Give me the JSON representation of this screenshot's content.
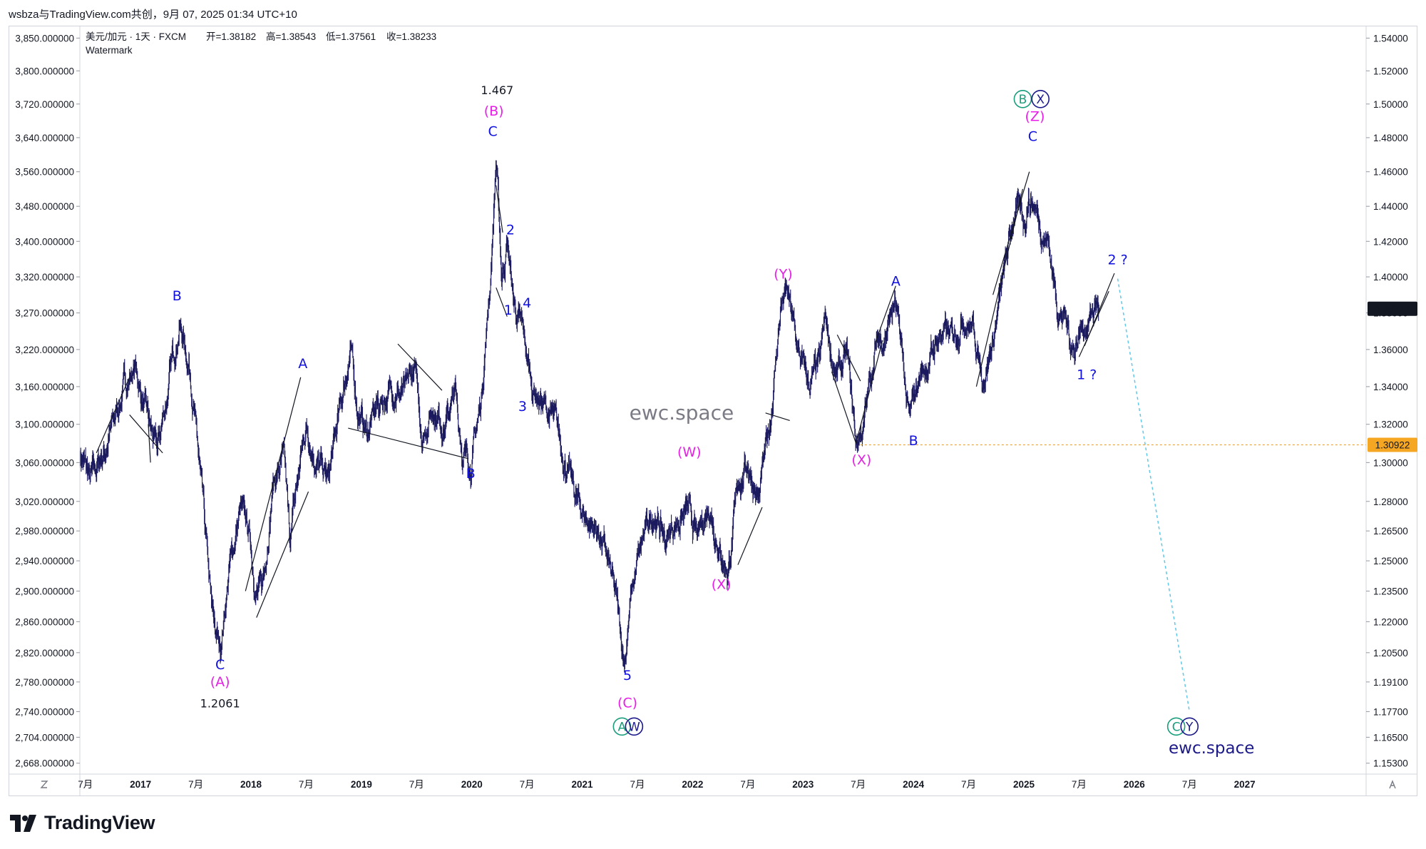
{
  "share_line": "wsbza与TradingView.com共创，9月 07, 2025 01:34 UTC+10",
  "legend": {
    "symbol": "美元/加元 · 1天 · FXCM",
    "open": "开=1.38182",
    "high": "高=1.38543",
    "low": "低=1.37561",
    "close": "收=1.38233",
    "watermark": "Watermark"
  },
  "brand": "TradingView",
  "colors": {
    "candles": "#1c1a5e",
    "blue_labels": "#1010e0",
    "magenta_labels": "#e61ee6",
    "teal_circle": "#1a9e7c",
    "navy_circle": "#1c1a8a",
    "price_badge": "#131722",
    "level_line": "#f5a623",
    "projection": "#5fc8e8"
  },
  "chart_data": {
    "type": "candlestick",
    "symbol": "USDCAD",
    "timeframe": "1D",
    "right_axis": {
      "ticks": [
        "1.54000",
        "1.52000",
        "1.50000",
        "1.48000",
        "1.46000",
        "1.44000",
        "1.42000",
        "1.40000",
        "1.38000",
        "1.36000",
        "1.34000",
        "1.32000",
        "1.30000",
        "1.28000",
        "1.26500",
        "1.25000",
        "1.23500",
        "1.22000",
        "1.20500",
        "1.19100",
        "1.17700",
        "1.16500",
        "1.15300"
      ],
      "range": [
        1.148,
        1.545
      ],
      "scale": "log"
    },
    "left_axis": {
      "ticks": [
        "3,850.000000",
        "3,800.000000",
        "3,720.000000",
        "3,640.000000",
        "3,560.000000",
        "3,480.000000",
        "3,400.000000",
        "3,320.000000",
        "3,270.000000",
        "3,220.000000",
        "3,160.000000",
        "3,100.000000",
        "3,060.000000",
        "3,020.000000",
        "2,980.000000",
        "2,940.000000",
        "2,900.000000",
        "2,860.000000",
        "2,820.000000",
        "2,780.000000",
        "2,740.000000",
        "2,704.000000",
        "2,668.000000"
      ]
    },
    "x_axis": {
      "ticks": [
        {
          "label": "7月",
          "t": 2016.5
        },
        {
          "label": "2017",
          "t": 2017.0
        },
        {
          "label": "7月",
          "t": 2017.5
        },
        {
          "label": "2018",
          "t": 2018.0
        },
        {
          "label": "7月",
          "t": 2018.5
        },
        {
          "label": "2019",
          "t": 2019.0
        },
        {
          "label": "7月",
          "t": 2019.5
        },
        {
          "label": "2020",
          "t": 2020.0
        },
        {
          "label": "7月",
          "t": 2020.5
        },
        {
          "label": "2021",
          "t": 2021.0
        },
        {
          "label": "7月",
          "t": 2021.5
        },
        {
          "label": "2022",
          "t": 2022.0
        },
        {
          "label": "7月",
          "t": 2022.5
        },
        {
          "label": "2023",
          "t": 2023.0
        },
        {
          "label": "7月",
          "t": 2023.5
        },
        {
          "label": "2024",
          "t": 2024.0
        },
        {
          "label": "7月",
          "t": 2024.5
        },
        {
          "label": "2025",
          "t": 2025.0
        },
        {
          "label": "7月",
          "t": 2025.5
        },
        {
          "label": "2026",
          "t": 2026.0
        },
        {
          "label": "7月",
          "t": 2026.5
        },
        {
          "label": "2027",
          "t": 2027.0
        }
      ],
      "range": [
        2016.45,
        2028.1
      ]
    },
    "price_path": [
      [
        2016.45,
        1.305
      ],
      [
        2016.55,
        1.29
      ],
      [
        2016.7,
        1.31
      ],
      [
        2016.85,
        1.34
      ],
      [
        2016.95,
        1.35
      ],
      [
        2017.05,
        1.325
      ],
      [
        2017.15,
        1.305
      ],
      [
        2017.25,
        1.34
      ],
      [
        2017.35,
        1.375
      ],
      [
        2017.45,
        1.35
      ],
      [
        2017.55,
        1.285
      ],
      [
        2017.65,
        1.22
      ],
      [
        2017.72,
        1.2061
      ],
      [
        2017.8,
        1.245
      ],
      [
        2017.9,
        1.275
      ],
      [
        2017.98,
        1.265
      ],
      [
        2018.05,
        1.235
      ],
      [
        2018.1,
        1.235
      ],
      [
        2018.2,
        1.29
      ],
      [
        2018.3,
        1.3
      ],
      [
        2018.35,
        1.26
      ],
      [
        2018.42,
        1.29
      ],
      [
        2018.5,
        1.32
      ],
      [
        2018.6,
        1.3
      ],
      [
        2018.7,
        1.29
      ],
      [
        2018.8,
        1.325
      ],
      [
        2018.9,
        1.36
      ],
      [
        2018.96,
        1.33
      ],
      [
        2019.05,
        1.315
      ],
      [
        2019.15,
        1.33
      ],
      [
        2019.3,
        1.34
      ],
      [
        2019.4,
        1.335
      ],
      [
        2019.48,
        1.35
      ],
      [
        2019.55,
        1.315
      ],
      [
        2019.65,
        1.33
      ],
      [
        2019.75,
        1.32
      ],
      [
        2019.85,
        1.335
      ],
      [
        2019.92,
        1.305
      ],
      [
        2019.99,
        1.3
      ],
      [
        2020.08,
        1.33
      ],
      [
        2020.17,
        1.4
      ],
      [
        2020.22,
        1.467
      ],
      [
        2020.27,
        1.4
      ],
      [
        2020.32,
        1.42
      ],
      [
        2020.38,
        1.385
      ],
      [
        2020.45,
        1.37
      ],
      [
        2020.55,
        1.34
      ],
      [
        2020.65,
        1.33
      ],
      [
        2020.75,
        1.32
      ],
      [
        2020.85,
        1.3
      ],
      [
        2020.95,
        1.28
      ],
      [
        2021.05,
        1.27
      ],
      [
        2021.15,
        1.265
      ],
      [
        2021.25,
        1.245
      ],
      [
        2021.32,
        1.225
      ],
      [
        2021.38,
        1.201
      ],
      [
        2021.45,
        1.235
      ],
      [
        2021.55,
        1.26
      ],
      [
        2021.65,
        1.275
      ],
      [
        2021.75,
        1.26
      ],
      [
        2021.85,
        1.27
      ],
      [
        2021.95,
        1.275
      ],
      [
        2022.05,
        1.26
      ],
      [
        2022.15,
        1.28
      ],
      [
        2022.25,
        1.255
      ],
      [
        2022.32,
        1.245
      ],
      [
        2022.42,
        1.29
      ],
      [
        2022.5,
        1.3
      ],
      [
        2022.6,
        1.28
      ],
      [
        2022.7,
        1.32
      ],
      [
        2022.8,
        1.385
      ],
      [
        2022.86,
        1.39
      ],
      [
        2022.95,
        1.36
      ],
      [
        2023.05,
        1.34
      ],
      [
        2023.15,
        1.35
      ],
      [
        2023.2,
        1.375
      ],
      [
        2023.3,
        1.345
      ],
      [
        2023.4,
        1.355
      ],
      [
        2023.48,
        1.31
      ],
      [
        2023.55,
        1.32
      ],
      [
        2023.65,
        1.36
      ],
      [
        2023.75,
        1.37
      ],
      [
        2023.83,
        1.385
      ],
      [
        2023.9,
        1.355
      ],
      [
        2023.96,
        1.32
      ],
      [
        2024.05,
        1.345
      ],
      [
        2024.15,
        1.355
      ],
      [
        2024.25,
        1.37
      ],
      [
        2024.35,
        1.365
      ],
      [
        2024.45,
        1.38
      ],
      [
        2024.55,
        1.37
      ],
      [
        2024.62,
        1.345
      ],
      [
        2024.72,
        1.365
      ],
      [
        2024.82,
        1.4
      ],
      [
        2024.92,
        1.44
      ],
      [
        2025.0,
        1.43
      ],
      [
        2025.04,
        1.4467
      ],
      [
        2025.1,
        1.44
      ],
      [
        2025.15,
        1.43
      ],
      [
        2025.22,
        1.42
      ],
      [
        2025.3,
        1.385
      ],
      [
        2025.38,
        1.375
      ],
      [
        2025.45,
        1.36
      ],
      [
        2025.5,
        1.37
      ],
      [
        2025.58,
        1.375
      ],
      [
        2025.65,
        1.385
      ],
      [
        2025.68,
        1.3823
      ]
    ],
    "last_price": "1.38233",
    "last_price_value": 1.38233,
    "level_line": {
      "label": "1.30922",
      "price": 1.30922,
      "from_t": 2023.52,
      "style": "dotted"
    },
    "projection": {
      "from": [
        2025.85,
        1.399
      ],
      "to": [
        2026.5,
        1.177
      ],
      "style": "dotted"
    },
    "annotations": [
      {
        "text": "B",
        "t": 2017.33,
        "price": 1.387,
        "color": "blue"
      },
      {
        "text": "C",
        "t": 2017.72,
        "price": 1.197,
        "color": "blue"
      },
      {
        "text": "(A)",
        "t": 2017.72,
        "price": 1.189,
        "color": "magenta"
      },
      {
        "text": "1.2061",
        "t": 2017.72,
        "price": 1.179,
        "color": "black"
      },
      {
        "text": "A",
        "t": 2018.47,
        "price": 1.35,
        "color": "blue"
      },
      {
        "text": "B",
        "t": 2019.99,
        "price": 1.292,
        "color": "blue"
      },
      {
        "text": "1.467",
        "t": 2020.23,
        "price": 1.506,
        "color": "black"
      },
      {
        "text": "(B)",
        "t": 2020.2,
        "price": 1.493,
        "color": "magenta"
      },
      {
        "text": "C",
        "t": 2020.19,
        "price": 1.481,
        "color": "blue"
      },
      {
        "text": "2",
        "t": 2020.35,
        "price": 1.424,
        "color": "blue"
      },
      {
        "text": "1",
        "t": 2020.33,
        "price": 1.379,
        "color": "blue"
      },
      {
        "text": "4",
        "t": 2020.5,
        "price": 1.383,
        "color": "blue"
      },
      {
        "text": "3",
        "t": 2020.46,
        "price": 1.327,
        "color": "blue"
      },
      {
        "text": "5",
        "t": 2021.41,
        "price": 1.192,
        "color": "blue"
      },
      {
        "text": "(C)",
        "t": 2021.41,
        "price": 1.179,
        "color": "magenta"
      },
      {
        "text": "(W)",
        "t": 2021.97,
        "price": 1.303,
        "color": "magenta"
      },
      {
        "text": "(X)",
        "t": 2022.26,
        "price": 1.236,
        "color": "magenta"
      },
      {
        "text": "(Y)",
        "t": 2022.82,
        "price": 1.399,
        "color": "magenta"
      },
      {
        "text": "A",
        "t": 2023.84,
        "price": 1.395,
        "color": "blue"
      },
      {
        "text": "(X)",
        "t": 2023.53,
        "price": 1.299,
        "color": "magenta"
      },
      {
        "text": "B",
        "t": 2024.0,
        "price": 1.309,
        "color": "blue"
      },
      {
        "text": "(Z)",
        "t": 2025.1,
        "price": 1.49,
        "color": "magenta"
      },
      {
        "text": "C",
        "t": 2025.08,
        "price": 1.478,
        "color": "blue"
      },
      {
        "text": "2 ?",
        "t": 2025.85,
        "price": 1.407,
        "color": "blue"
      },
      {
        "text": "1 ?",
        "t": 2025.57,
        "price": 1.344,
        "color": "blue"
      }
    ],
    "circled_labels": [
      {
        "text": "A",
        "t": 2021.36,
        "price": 1.17,
        "style": "teal"
      },
      {
        "text": "W",
        "t": 2021.47,
        "price": 1.17,
        "style": "navy"
      },
      {
        "text": "B",
        "t": 2024.99,
        "price": 1.503,
        "style": "teal"
      },
      {
        "text": "X",
        "t": 2025.15,
        "price": 1.503,
        "style": "navy"
      },
      {
        "text": "C",
        "t": 2026.38,
        "price": 1.17,
        "style": "teal"
      },
      {
        "text": "Y",
        "t": 2026.5,
        "price": 1.17,
        "style": "navy"
      }
    ],
    "watermarks": [
      {
        "text": "ewc.space",
        "t": 2021.9,
        "price": 1.3225
      },
      {
        "text": "ewc.space",
        "t": 2026.7,
        "price": 1.1575
      }
    ]
  }
}
